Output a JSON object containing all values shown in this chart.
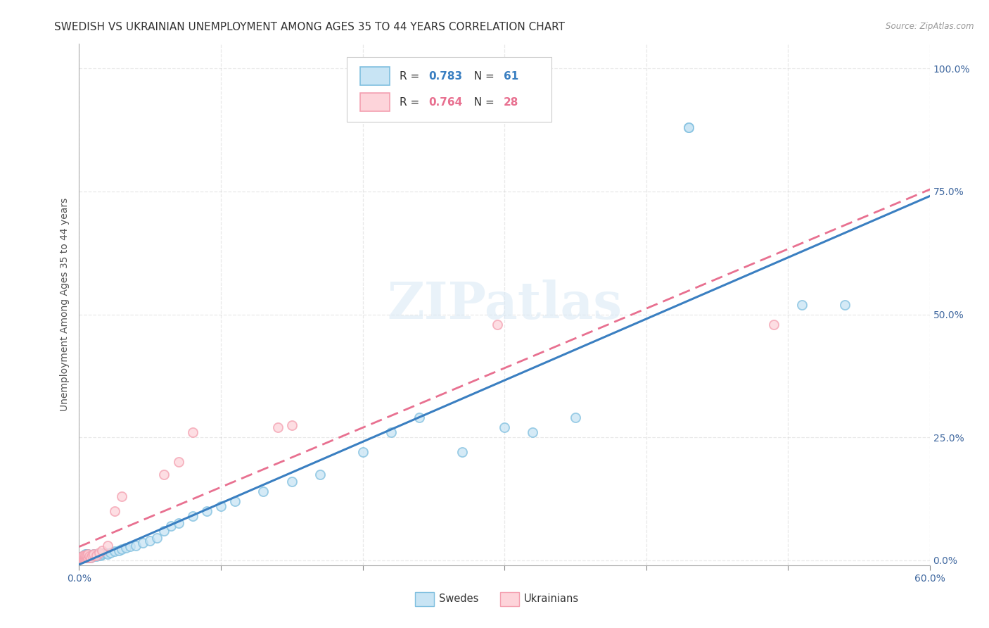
{
  "title": "SWEDISH VS UKRAINIAN UNEMPLOYMENT AMONG AGES 35 TO 44 YEARS CORRELATION CHART",
  "source": "Source: ZipAtlas.com",
  "ylabel": "Unemployment Among Ages 35 to 44 years",
  "xlim": [
    0.0,
    0.6
  ],
  "ylim": [
    -0.01,
    1.05
  ],
  "xticks": [
    0.0,
    0.1,
    0.2,
    0.3,
    0.4,
    0.5,
    0.6
  ],
  "yticks": [
    0.0,
    0.25,
    0.5,
    0.75,
    1.0
  ],
  "ytick_labels": [
    "0.0%",
    "25.0%",
    "50.0%",
    "75.0%",
    "100.0%"
  ],
  "xtick_labels": [
    "0.0%",
    "",
    "",
    "",
    "",
    "",
    "60.0%"
  ],
  "swedes_color": "#7fbfdf",
  "swedes_face": "#c8e4f4",
  "ukrainians_color": "#f4a0b0",
  "ukrainians_face": "#fdd4da",
  "swedes_R": "0.783",
  "swedes_N": "61",
  "ukrainians_R": "0.764",
  "ukrainians_N": "28",
  "legend_swedes": "Swedes",
  "legend_ukrainians": "Ukrainians",
  "watermark": "ZIPatlas",
  "title_fontsize": 11,
  "axis_label_fontsize": 10,
  "tick_fontsize": 10,
  "swedes_x": [
    0.001,
    0.002,
    0.002,
    0.003,
    0.003,
    0.003,
    0.004,
    0.004,
    0.004,
    0.005,
    0.005,
    0.005,
    0.006,
    0.006,
    0.006,
    0.007,
    0.007,
    0.008,
    0.008,
    0.009,
    0.01,
    0.01,
    0.011,
    0.012,
    0.013,
    0.014,
    0.015,
    0.016,
    0.018,
    0.02,
    0.022,
    0.025,
    0.028,
    0.03,
    0.033,
    0.036,
    0.04,
    0.045,
    0.05,
    0.055,
    0.06,
    0.065,
    0.07,
    0.08,
    0.09,
    0.1,
    0.11,
    0.13,
    0.15,
    0.17,
    0.2,
    0.22,
    0.24,
    0.27,
    0.3,
    0.32,
    0.35,
    0.43,
    0.43,
    0.51,
    0.54
  ],
  "swedes_y": [
    0.005,
    0.005,
    0.008,
    0.005,
    0.008,
    0.01,
    0.005,
    0.008,
    0.012,
    0.006,
    0.008,
    0.012,
    0.005,
    0.008,
    0.012,
    0.008,
    0.01,
    0.005,
    0.01,
    0.008,
    0.008,
    0.012,
    0.01,
    0.008,
    0.01,
    0.012,
    0.01,
    0.012,
    0.015,
    0.012,
    0.015,
    0.018,
    0.02,
    0.022,
    0.025,
    0.028,
    0.03,
    0.035,
    0.04,
    0.045,
    0.06,
    0.07,
    0.075,
    0.09,
    0.1,
    0.11,
    0.12,
    0.14,
    0.16,
    0.175,
    0.22,
    0.26,
    0.29,
    0.22,
    0.27,
    0.26,
    0.29,
    0.88,
    0.88,
    0.52,
    0.52
  ],
  "ukrainians_x": [
    0.001,
    0.002,
    0.002,
    0.003,
    0.003,
    0.004,
    0.004,
    0.005,
    0.005,
    0.006,
    0.006,
    0.007,
    0.008,
    0.009,
    0.01,
    0.012,
    0.014,
    0.016,
    0.02,
    0.025,
    0.03,
    0.06,
    0.07,
    0.08,
    0.14,
    0.15,
    0.295,
    0.49
  ],
  "ukrainians_y": [
    0.005,
    0.005,
    0.008,
    0.005,
    0.01,
    0.005,
    0.01,
    0.005,
    0.01,
    0.005,
    0.012,
    0.008,
    0.005,
    0.01,
    0.012,
    0.01,
    0.015,
    0.02,
    0.03,
    0.1,
    0.13,
    0.175,
    0.2,
    0.26,
    0.27,
    0.275,
    0.48,
    0.48
  ],
  "swe_line_slope": 1.05,
  "swe_line_intercept": -0.01,
  "ukr_line_slope": 1.3,
  "ukr_line_intercept": 0.02
}
